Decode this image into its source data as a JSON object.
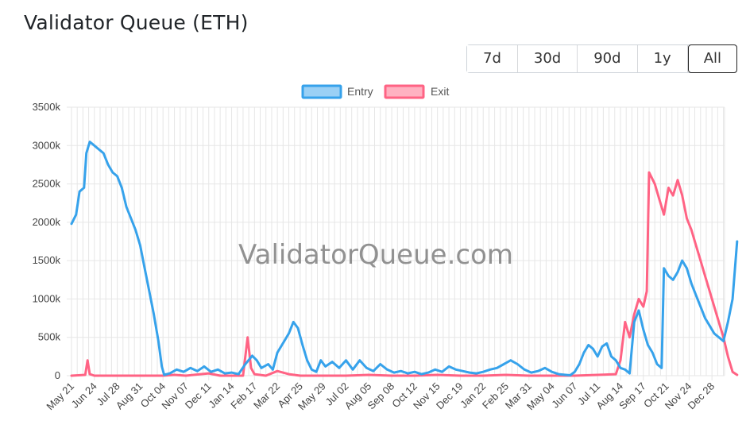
{
  "header": {
    "title": "Validator Queue (ETH)"
  },
  "range_buttons": [
    {
      "label": "7d",
      "active": false
    },
    {
      "label": "30d",
      "active": false
    },
    {
      "label": "90d",
      "active": false
    },
    {
      "label": "1y",
      "active": false
    },
    {
      "label": "All",
      "active": true
    }
  ],
  "watermark": "ValidatorQueue.com",
  "colors": {
    "entry_line": "#36a2eb",
    "entry_fill": "#9ad0f5",
    "exit_line": "#ff6384",
    "exit_fill": "#ffb1c1",
    "grid": "#e6e6e6"
  },
  "chart_data": {
    "type": "line",
    "title": "",
    "xlabel": "",
    "ylabel": "",
    "ylim": [
      0,
      3500000
    ],
    "y_ticks": [
      "0",
      "500k",
      "1000k",
      "1500k",
      "2000k",
      "2500k",
      "3000k",
      "3500k"
    ],
    "x_ticks": [
      "May 21",
      "Jun 24",
      "Jul 28",
      "Aug 31",
      "Oct 04",
      "Nov 07",
      "Dec 11",
      "Jan 14",
      "Feb 17",
      "Mar 22",
      "Apr 25",
      "May 29",
      "Jul 02",
      "Aug 05",
      "Sep 08",
      "Oct 12",
      "Nov 15",
      "Dec 19",
      "Jan 22",
      "Feb 25",
      "Mar 31",
      "May 04",
      "Jun 07",
      "Jul 11",
      "Aug 14",
      "Sep 17",
      "Oct 21",
      "Nov 24",
      "Dec 28"
    ],
    "grid": true,
    "legend_position": "top-center",
    "series": [
      {
        "name": "Entry",
        "points": [
          [
            0,
            1980000
          ],
          [
            0.2,
            2100000
          ],
          [
            0.35,
            2400000
          ],
          [
            0.55,
            2450000
          ],
          [
            0.65,
            2900000
          ],
          [
            0.8,
            3050000
          ],
          [
            1.0,
            3000000
          ],
          [
            1.2,
            2950000
          ],
          [
            1.4,
            2900000
          ],
          [
            1.6,
            2750000
          ],
          [
            1.8,
            2650000
          ],
          [
            2.0,
            2600000
          ],
          [
            2.2,
            2450000
          ],
          [
            2.4,
            2200000
          ],
          [
            2.6,
            2050000
          ],
          [
            2.8,
            1900000
          ],
          [
            3.0,
            1700000
          ],
          [
            3.2,
            1400000
          ],
          [
            3.4,
            1100000
          ],
          [
            3.6,
            800000
          ],
          [
            3.8,
            450000
          ],
          [
            3.95,
            120000
          ],
          [
            4.05,
            10000
          ],
          [
            4.3,
            30000
          ],
          [
            4.6,
            80000
          ],
          [
            4.9,
            50000
          ],
          [
            5.2,
            100000
          ],
          [
            5.5,
            60000
          ],
          [
            5.8,
            120000
          ],
          [
            6.1,
            50000
          ],
          [
            6.4,
            80000
          ],
          [
            6.7,
            30000
          ],
          [
            7.0,
            40000
          ],
          [
            7.3,
            20000
          ],
          [
            7.6,
            150000
          ],
          [
            7.9,
            260000
          ],
          [
            8.1,
            200000
          ],
          [
            8.3,
            100000
          ],
          [
            8.6,
            150000
          ],
          [
            8.8,
            80000
          ],
          [
            9.0,
            300000
          ],
          [
            9.3,
            450000
          ],
          [
            9.5,
            550000
          ],
          [
            9.7,
            700000
          ],
          [
            9.9,
            620000
          ],
          [
            10.1,
            400000
          ],
          [
            10.3,
            200000
          ],
          [
            10.5,
            80000
          ],
          [
            10.7,
            50000
          ],
          [
            10.9,
            200000
          ],
          [
            11.1,
            120000
          ],
          [
            11.4,
            180000
          ],
          [
            11.7,
            100000
          ],
          [
            12.0,
            200000
          ],
          [
            12.3,
            80000
          ],
          [
            12.6,
            200000
          ],
          [
            12.9,
            100000
          ],
          [
            13.2,
            60000
          ],
          [
            13.5,
            150000
          ],
          [
            13.8,
            80000
          ],
          [
            14.1,
            40000
          ],
          [
            14.4,
            60000
          ],
          [
            14.7,
            30000
          ],
          [
            15.0,
            50000
          ],
          [
            15.3,
            20000
          ],
          [
            15.6,
            40000
          ],
          [
            15.9,
            80000
          ],
          [
            16.2,
            50000
          ],
          [
            16.5,
            120000
          ],
          [
            16.8,
            80000
          ],
          [
            17.1,
            60000
          ],
          [
            17.4,
            40000
          ],
          [
            17.7,
            30000
          ],
          [
            18.0,
            50000
          ],
          [
            18.3,
            80000
          ],
          [
            18.6,
            100000
          ],
          [
            18.9,
            150000
          ],
          [
            19.2,
            200000
          ],
          [
            19.5,
            150000
          ],
          [
            19.8,
            80000
          ],
          [
            20.1,
            40000
          ],
          [
            20.4,
            60000
          ],
          [
            20.7,
            100000
          ],
          [
            21.0,
            50000
          ],
          [
            21.3,
            20000
          ],
          [
            21.6,
            10000
          ],
          [
            21.8,
            5000
          ],
          [
            22.0,
            50000
          ],
          [
            22.2,
            150000
          ],
          [
            22.4,
            300000
          ],
          [
            22.6,
            400000
          ],
          [
            22.8,
            350000
          ],
          [
            23.0,
            250000
          ],
          [
            23.2,
            380000
          ],
          [
            23.4,
            420000
          ],
          [
            23.6,
            250000
          ],
          [
            23.8,
            200000
          ],
          [
            24.0,
            100000
          ],
          [
            24.2,
            80000
          ],
          [
            24.4,
            30000
          ],
          [
            24.6,
            700000
          ],
          [
            24.8,
            850000
          ],
          [
            25.0,
            600000
          ],
          [
            25.2,
            400000
          ],
          [
            25.4,
            300000
          ],
          [
            25.6,
            150000
          ],
          [
            25.8,
            100000
          ],
          [
            25.9,
            1400000
          ],
          [
            26.1,
            1300000
          ],
          [
            26.3,
            1250000
          ],
          [
            26.5,
            1350000
          ],
          [
            26.7,
            1500000
          ],
          [
            26.9,
            1400000
          ],
          [
            27.1,
            1200000
          ],
          [
            27.3,
            1050000
          ],
          [
            27.5,
            900000
          ],
          [
            27.7,
            750000
          ],
          [
            27.9,
            650000
          ],
          [
            28.1,
            550000
          ],
          [
            28.3,
            500000
          ],
          [
            28.5,
            450000
          ],
          [
            28.7,
            700000
          ],
          [
            28.9,
            1000000
          ],
          [
            29.1,
            1750000
          ]
        ]
      },
      {
        "name": "Exit",
        "points": [
          [
            0,
            0
          ],
          [
            0.6,
            10000
          ],
          [
            0.7,
            200000
          ],
          [
            0.8,
            20000
          ],
          [
            1.0,
            0
          ],
          [
            2.0,
            0
          ],
          [
            3.0,
            0
          ],
          [
            4.0,
            0
          ],
          [
            4.5,
            10000
          ],
          [
            5.0,
            0
          ],
          [
            6.0,
            30000
          ],
          [
            6.5,
            0
          ],
          [
            7.5,
            0
          ],
          [
            7.7,
            500000
          ],
          [
            7.85,
            100000
          ],
          [
            8.0,
            20000
          ],
          [
            8.5,
            0
          ],
          [
            9.0,
            60000
          ],
          [
            9.5,
            20000
          ],
          [
            10.0,
            0
          ],
          [
            11.0,
            0
          ],
          [
            12.0,
            0
          ],
          [
            13.0,
            10000
          ],
          [
            14.0,
            0
          ],
          [
            15.0,
            0
          ],
          [
            16.0,
            10000
          ],
          [
            17.0,
            0
          ],
          [
            18.0,
            0
          ],
          [
            19.0,
            10000
          ],
          [
            20.0,
            0
          ],
          [
            21.0,
            0
          ],
          [
            22.0,
            0
          ],
          [
            23.0,
            10000
          ],
          [
            23.8,
            20000
          ],
          [
            24.0,
            200000
          ],
          [
            24.2,
            700000
          ],
          [
            24.4,
            500000
          ],
          [
            24.6,
            800000
          ],
          [
            24.8,
            1000000
          ],
          [
            25.0,
            900000
          ],
          [
            25.15,
            1100000
          ],
          [
            25.25,
            2650000
          ],
          [
            25.5,
            2500000
          ],
          [
            25.7,
            2300000
          ],
          [
            25.9,
            2100000
          ],
          [
            26.1,
            2450000
          ],
          [
            26.3,
            2350000
          ],
          [
            26.5,
            2550000
          ],
          [
            26.7,
            2350000
          ],
          [
            26.9,
            2050000
          ],
          [
            27.1,
            1900000
          ],
          [
            27.3,
            1700000
          ],
          [
            27.5,
            1500000
          ],
          [
            27.7,
            1300000
          ],
          [
            27.9,
            1100000
          ],
          [
            28.1,
            900000
          ],
          [
            28.3,
            700000
          ],
          [
            28.5,
            500000
          ],
          [
            28.7,
            250000
          ],
          [
            28.9,
            50000
          ],
          [
            29.1,
            10000
          ]
        ]
      }
    ]
  }
}
